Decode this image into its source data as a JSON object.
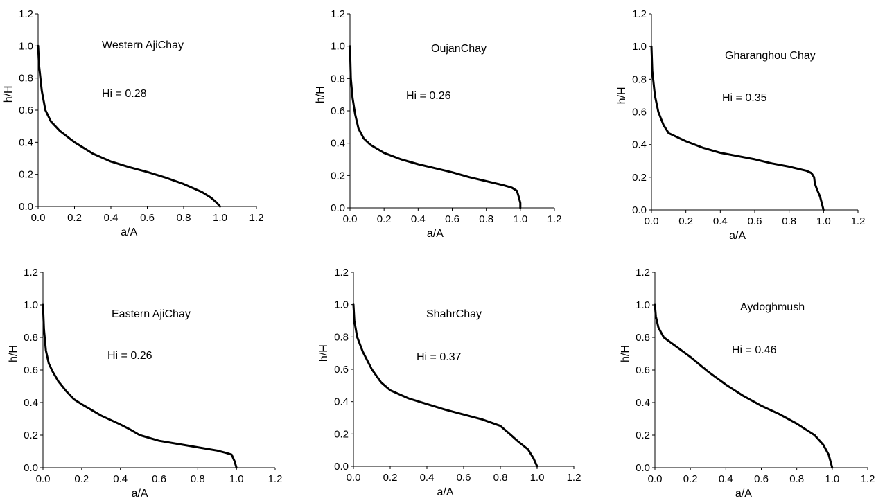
{
  "chart_data": [
    {
      "type": "line",
      "annotations": [
        "Western  AjiChay",
        "Hi = 0.28"
      ],
      "xlabel": "a/A",
      "ylabel": "h/H",
      "xlim": [
        0,
        1.2
      ],
      "ylim": [
        0,
        1.2
      ],
      "xticks": [
        "0.0",
        "0.2",
        "0.4",
        "0.6",
        "0.8",
        "1.0",
        "1.2"
      ],
      "yticks": [
        "0.0",
        "0.2",
        "0.4",
        "0.6",
        "0.8",
        "1.0",
        "1.2"
      ],
      "grid": false,
      "series": [
        {
          "x": [
            0,
            0.005,
            0.02,
            0.04,
            0.07,
            0.12,
            0.2,
            0.3,
            0.4,
            0.5,
            0.6,
            0.7,
            0.8,
            0.9,
            0.95,
            0.98,
            1.0
          ],
          "y": [
            1.0,
            0.88,
            0.72,
            0.6,
            0.53,
            0.47,
            0.4,
            0.33,
            0.28,
            0.245,
            0.215,
            0.18,
            0.14,
            0.09,
            0.055,
            0.025,
            0.0
          ]
        }
      ]
    },
    {
      "type": "line",
      "annotations": [
        "OujanChay",
        "Hi = 0.26"
      ],
      "xlabel": "a/A",
      "ylabel": "h/H",
      "xlim": [
        0,
        1.2
      ],
      "ylim": [
        0,
        1.2
      ],
      "xticks": [
        "0.0",
        "0.2",
        "0.4",
        "0.6",
        "0.8",
        "1.0",
        "1.2"
      ],
      "yticks": [
        "0.0",
        "0.2",
        "0.4",
        "0.6",
        "0.8",
        "1.0",
        "1.2"
      ],
      "grid": false,
      "series": [
        {
          "x": [
            0,
            0.005,
            0.015,
            0.03,
            0.05,
            0.08,
            0.12,
            0.2,
            0.3,
            0.4,
            0.5,
            0.6,
            0.7,
            0.8,
            0.9,
            0.95,
            0.98,
            0.99,
            1.0,
            1.0
          ],
          "y": [
            1.0,
            0.8,
            0.68,
            0.58,
            0.49,
            0.43,
            0.39,
            0.34,
            0.3,
            0.27,
            0.245,
            0.22,
            0.19,
            0.165,
            0.14,
            0.125,
            0.105,
            0.07,
            0.03,
            0.0
          ]
        }
      ]
    },
    {
      "type": "line",
      "annotations": [
        "Gharanghou Chay",
        "Hi = 0.35"
      ],
      "xlabel": "a/A",
      "ylabel": "h/H",
      "xlim": [
        0,
        1.2
      ],
      "ylim": [
        0,
        1.2
      ],
      "xticks": [
        "0.0",
        "0.2",
        "0.4",
        "0.6",
        "0.8",
        "1.0",
        "1.2"
      ],
      "yticks": [
        "0.0",
        "0.2",
        "0.4",
        "0.6",
        "0.8",
        "1.0",
        "1.2"
      ],
      "grid": false,
      "series": [
        {
          "x": [
            0,
            0.005,
            0.02,
            0.04,
            0.07,
            0.1,
            0.2,
            0.3,
            0.4,
            0.5,
            0.6,
            0.7,
            0.8,
            0.9,
            0.93,
            0.945,
            0.95,
            0.96,
            0.98,
            1.0
          ],
          "y": [
            1.0,
            0.85,
            0.7,
            0.6,
            0.52,
            0.47,
            0.42,
            0.38,
            0.35,
            0.33,
            0.31,
            0.285,
            0.265,
            0.24,
            0.225,
            0.2,
            0.16,
            0.13,
            0.08,
            0.0
          ]
        }
      ]
    },
    {
      "type": "line",
      "annotations": [
        "Eastern  AjiChay",
        "Hi = 0.26"
      ],
      "xlabel": "a/A",
      "ylabel": "h/H",
      "xlim": [
        0,
        1.2
      ],
      "ylim": [
        0,
        1.2
      ],
      "xticks": [
        "0.0",
        "0.2",
        "0.4",
        "0.6",
        "0.8",
        "1.0",
        "1.2"
      ],
      "yticks": [
        "0.0",
        "0.2",
        "0.4",
        "0.6",
        "0.8",
        "1.0",
        "1.2"
      ],
      "grid": false,
      "series": [
        {
          "x": [
            0,
            0.005,
            0.015,
            0.03,
            0.05,
            0.08,
            0.12,
            0.16,
            0.2,
            0.3,
            0.4,
            0.45,
            0.5,
            0.6,
            0.7,
            0.8,
            0.9,
            0.95,
            0.975,
            0.99,
            1.0
          ],
          "y": [
            1.0,
            0.85,
            0.72,
            0.64,
            0.59,
            0.53,
            0.47,
            0.42,
            0.39,
            0.32,
            0.265,
            0.235,
            0.2,
            0.165,
            0.145,
            0.125,
            0.105,
            0.09,
            0.08,
            0.04,
            0.0
          ]
        }
      ]
    },
    {
      "type": "line",
      "annotations": [
        "ShahrChay",
        "Hi = 0.37"
      ],
      "xlabel": "a/A",
      "ylabel": "h/H",
      "xlim": [
        0,
        1.2
      ],
      "ylim": [
        0,
        1.2
      ],
      "xticks": [
        "0.0",
        "0.2",
        "0.4",
        "0.6",
        "0.8",
        "1.0",
        "1.2"
      ],
      "yticks": [
        "0.0",
        "0.2",
        "0.4",
        "0.6",
        "0.8",
        "1.0",
        "1.2"
      ],
      "grid": false,
      "series": [
        {
          "x": [
            0,
            0.005,
            0.02,
            0.05,
            0.1,
            0.15,
            0.2,
            0.3,
            0.4,
            0.5,
            0.6,
            0.7,
            0.8,
            0.85,
            0.9,
            0.95,
            0.98,
            1.0
          ],
          "y": [
            1.0,
            0.9,
            0.8,
            0.71,
            0.6,
            0.52,
            0.47,
            0.42,
            0.385,
            0.35,
            0.32,
            0.29,
            0.25,
            0.2,
            0.15,
            0.105,
            0.05,
            0.0
          ]
        }
      ]
    },
    {
      "type": "line",
      "annotations": [
        "Aydoghmush",
        "Hi = 0.46"
      ],
      "xlabel": "a/A",
      "ylabel": "h/H",
      "xlim": [
        0,
        1.2
      ],
      "ylim": [
        0,
        1.2
      ],
      "xticks": [
        "0.0",
        "0.2",
        "0.4",
        "0.6",
        "0.8",
        "1.0",
        "1.2"
      ],
      "yticks": [
        "0.0",
        "0.2",
        "0.4",
        "0.6",
        "0.8",
        "1.0",
        "1.2"
      ],
      "grid": false,
      "series": [
        {
          "x": [
            0,
            0.005,
            0.02,
            0.05,
            0.1,
            0.2,
            0.3,
            0.4,
            0.5,
            0.6,
            0.7,
            0.8,
            0.9,
            0.95,
            0.98,
            1.0
          ],
          "y": [
            1.0,
            0.93,
            0.86,
            0.8,
            0.76,
            0.68,
            0.59,
            0.51,
            0.44,
            0.38,
            0.33,
            0.27,
            0.2,
            0.14,
            0.08,
            0.0
          ]
        }
      ]
    }
  ]
}
